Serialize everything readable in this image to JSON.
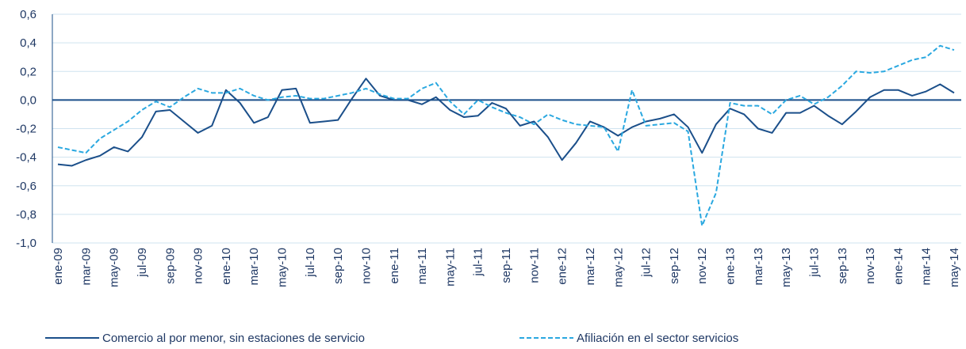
{
  "chart_data": {
    "type": "line",
    "categories": [
      "ene-09",
      null,
      "mar-09",
      null,
      "may-09",
      null,
      "jul-09",
      null,
      "sep-09",
      null,
      "nov-09",
      null,
      "ene-10",
      null,
      "mar-10",
      null,
      "may-10",
      null,
      "jul-10",
      null,
      "sep-10",
      null,
      "nov-10",
      null,
      "ene-11",
      null,
      "mar-11",
      null,
      "may-11",
      null,
      "jul-11",
      null,
      "sep-11",
      null,
      "nov-11",
      null,
      "ene-12",
      null,
      "mar-12",
      null,
      "may-12",
      null,
      "jul-12",
      null,
      "sep-12",
      null,
      "nov-12",
      null,
      "ene-13",
      null,
      "mar-13",
      null,
      "may-13",
      null,
      "jul-13",
      null,
      "sep-13",
      null,
      "nov-13",
      null,
      "ene-14",
      null,
      "mar-14",
      null,
      "may-14"
    ],
    "series": [
      {
        "name": "Comercio al por menor, sin estaciones de servicio",
        "color": "#1b4f8a",
        "dash": false,
        "values": [
          -0.45,
          -0.46,
          -0.42,
          -0.39,
          -0.33,
          -0.36,
          -0.26,
          -0.08,
          -0.07,
          -0.15,
          -0.23,
          -0.18,
          0.07,
          -0.02,
          -0.16,
          -0.12,
          0.07,
          0.08,
          -0.16,
          -0.15,
          -0.14,
          0.01,
          0.15,
          0.03,
          0.0,
          0.0,
          -0.03,
          0.02,
          -0.07,
          -0.12,
          -0.11,
          -0.02,
          -0.06,
          -0.18,
          -0.15,
          -0.26,
          -0.42,
          -0.3,
          -0.15,
          -0.19,
          -0.25,
          -0.19,
          -0.15,
          -0.13,
          -0.1,
          -0.19,
          -0.37,
          -0.17,
          -0.06,
          -0.1,
          -0.2,
          -0.23,
          -0.09,
          -0.09,
          -0.04,
          -0.11,
          -0.17,
          -0.08,
          0.02,
          0.07,
          0.07,
          0.03,
          0.06,
          0.11,
          0.05
        ]
      },
      {
        "name": "Afiliación en el sector servicios",
        "color": "#2aa8e0",
        "dash": true,
        "values": [
          -0.33,
          -0.35,
          -0.37,
          -0.27,
          -0.21,
          -0.15,
          -0.07,
          -0.01,
          -0.05,
          0.02,
          0.08,
          0.05,
          0.05,
          0.08,
          0.03,
          0.0,
          0.02,
          0.03,
          0.01,
          0.01,
          0.03,
          0.05,
          0.08,
          0.04,
          0.01,
          0.01,
          0.08,
          0.12,
          -0.01,
          -0.1,
          0.0,
          -0.05,
          -0.09,
          -0.12,
          -0.17,
          -0.1,
          -0.14,
          -0.17,
          -0.18,
          -0.19,
          -0.36,
          0.07,
          -0.18,
          -0.17,
          -0.16,
          -0.22,
          -0.88,
          -0.65,
          -0.02,
          -0.04,
          -0.04,
          -0.1,
          0.0,
          0.03,
          -0.03,
          0.02,
          0.1,
          0.2,
          0.19,
          0.2,
          0.24,
          0.28,
          0.3,
          0.38,
          0.35
        ]
      }
    ],
    "ylim": [
      -1.0,
      0.6
    ],
    "yticks": [
      {
        "value": -1.0,
        "label": "-1,0"
      },
      {
        "value": -0.8,
        "label": "-0,8"
      },
      {
        "value": -0.6,
        "label": "-0,6"
      },
      {
        "value": -0.4,
        "label": "-0,4"
      },
      {
        "value": -0.2,
        "label": "-0,2"
      },
      {
        "value": 0,
        "label": "0,0"
      },
      {
        "value": 0.2,
        "label": "0,2"
      },
      {
        "value": 0.4,
        "label": "0,4"
      },
      {
        "value": 0.6,
        "label": "0,6"
      }
    ],
    "grid": true,
    "legend": "bottom"
  }
}
